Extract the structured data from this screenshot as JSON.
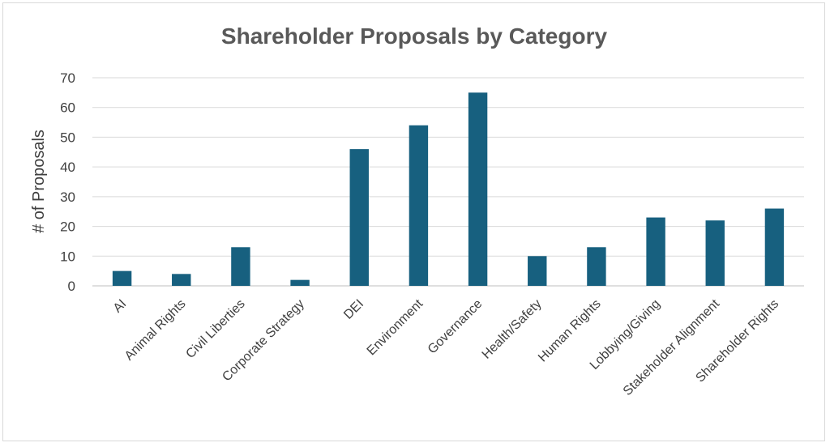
{
  "chart_data": {
    "type": "bar",
    "title": "Shareholder Proposals by Category",
    "xlabel": "",
    "ylabel": "# of Proposals",
    "categories": [
      "AI",
      "Animal Rights",
      "Civil Liberties",
      "Corporate Strategy",
      "DEI",
      "Environment",
      "Governance",
      "Health/Safety",
      "Human Rights",
      "Lobbying/Giving",
      "Stakeholder Alignment",
      "Shareholder Rights"
    ],
    "values": [
      5,
      4,
      13,
      2,
      46,
      54,
      65,
      10,
      13,
      23,
      22,
      26
    ],
    "ylim": [
      0,
      70
    ],
    "yticks": [
      0,
      10,
      20,
      30,
      40,
      50,
      60,
      70
    ],
    "grid": true,
    "legend": "none",
    "bar_color": "#17607f"
  }
}
